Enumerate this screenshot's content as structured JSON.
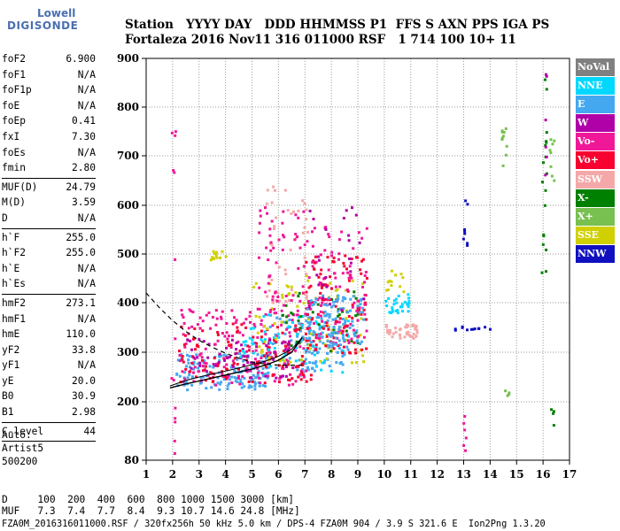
{
  "logo": {
    "line1": "Lowell",
    "line2": "DIGISONDE"
  },
  "header": {
    "line1": "Station   YYYY DAY   DDD HHMMSS P1  FFS S AXN PPS IGA PS",
    "line2": "Fortaleza 2016 Nov11 316 011000 RSF   1 714 100 10+ 11"
  },
  "params": {
    "group1": [
      {
        "name": "foF2",
        "value": "6.900"
      },
      {
        "name": "foF1",
        "value": "N/A"
      },
      {
        "name": "foF1p",
        "value": "N/A"
      },
      {
        "name": "foE",
        "value": "N/A"
      },
      {
        "name": "foEp",
        "value": "0.41"
      },
      {
        "name": "fxI",
        "value": "7.30"
      },
      {
        "name": "foEs",
        "value": "N/A"
      },
      {
        "name": "fmin",
        "value": "2.80"
      }
    ],
    "group2": [
      {
        "name": "MUF(D)",
        "value": "24.79"
      },
      {
        "name": "M(D)",
        "value": "3.59"
      },
      {
        "name": "D",
        "value": "N/A"
      }
    ],
    "group3": [
      {
        "name": "h`F",
        "value": "255.0"
      },
      {
        "name": "h`F2",
        "value": "255.0"
      },
      {
        "name": "h`E",
        "value": "N/A"
      },
      {
        "name": "h`Es",
        "value": "N/A"
      }
    ],
    "group4": [
      {
        "name": "hmF2",
        "value": "273.1"
      },
      {
        "name": "hmF1",
        "value": "N/A"
      },
      {
        "name": "hmE",
        "value": "110.0"
      },
      {
        "name": "yF2",
        "value": "33.8"
      },
      {
        "name": "yF1",
        "value": "N/A"
      },
      {
        "name": "yE",
        "value": "20.0"
      },
      {
        "name": "B0",
        "value": "30.9"
      },
      {
        "name": "B1",
        "value": "2.98"
      }
    ],
    "group5": [
      {
        "name": "C-level",
        "value": "44"
      }
    ]
  },
  "auto": {
    "line1": "Auto:",
    "line2": "Artist5",
    "line3": "500200"
  },
  "legend": [
    {
      "label": "NoVal",
      "color": "#808080"
    },
    {
      "label": "NNE",
      "color": "#00d8ff"
    },
    {
      "label": "E",
      "color": "#44a8f0"
    },
    {
      "label": "W",
      "color": "#b000a8"
    },
    {
      "label": "Vo-",
      "color": "#f01898"
    },
    {
      "label": "Vo+",
      "color": "#f80030"
    },
    {
      "label": "SSW",
      "color": "#f4a8a8"
    },
    {
      "label": "X-",
      "color": "#008000"
    },
    {
      "label": "X+",
      "color": "#78c050"
    },
    {
      "label": "SSE",
      "color": "#d0d000"
    },
    {
      "label": "NNW",
      "color": "#1010c0"
    }
  ],
  "bottom": {
    "line1": "D     100  200  400  600  800 1000 1500 3000 [km]",
    "line2": "MUF   7.3  7.4  7.7  8.4  9.3 10.7 14.6 24.8 [MHz]",
    "line3": "FZA0M_2016316011000.RSF / 320fx256h 50 kHz 5.0 km / DPS-4 FZA0M 904 / 3.9 S 321.6 E  Ion2Png 1.3.20"
  },
  "chart_data": {
    "type": "scatter",
    "title": "",
    "xlabel": "",
    "ylabel": "",
    "xlim": [
      1,
      17
    ],
    "ylim": [
      80,
      900
    ],
    "x_ticks": [
      1,
      2,
      3,
      4,
      5,
      6,
      7,
      8,
      9,
      10,
      11,
      12,
      13,
      14,
      15,
      16,
      17
    ],
    "y_ticks": [
      80,
      200,
      300,
      400,
      500,
      600,
      700,
      800,
      900
    ],
    "grid": true,
    "trace_f2": {
      "x": [
        1.9,
        2.5,
        3.0,
        3.5,
        4.0,
        4.5,
        5.0,
        5.5,
        6.0,
        6.5,
        6.9
      ],
      "y": [
        228,
        236,
        242,
        248,
        254,
        260,
        266,
        274,
        284,
        300,
        330
      ]
    },
    "trace_upper": {
      "x": [
        1.9,
        2.5,
        3.0,
        3.5,
        4.0,
        4.5,
        5.0,
        5.5,
        6.0,
        6.5,
        6.9
      ],
      "y": [
        232,
        243,
        250,
        256,
        262,
        268,
        275,
        282,
        292,
        306,
        330
      ]
    },
    "profile_dashed": {
      "x": [
        1.0,
        1.5,
        2.0,
        2.5,
        3.0,
        3.5,
        4.0,
        4.5,
        5.0,
        5.5,
        6.0,
        6.5,
        6.9
      ],
      "y": [
        420,
        390,
        364,
        342,
        324,
        310,
        298,
        288,
        280,
        276,
        274,
        274,
        274
      ]
    },
    "clusters": [
      {
        "color": "#44a8f0",
        "x": [
          2.0,
          5.6
        ],
        "y": [
          225,
          300
        ],
        "n": 140
      },
      {
        "color": "#44a8f0",
        "x": [
          5.5,
          8.6
        ],
        "y": [
          255,
          380
        ],
        "n": 120
      },
      {
        "color": "#f01898",
        "x": [
          2.2,
          7.0
        ],
        "y": [
          235,
          390
        ],
        "n": 170
      },
      {
        "color": "#f80030",
        "x": [
          2.2,
          7.2
        ],
        "y": [
          240,
          360
        ],
        "n": 130
      },
      {
        "color": "#b000a8",
        "x": [
          2.5,
          6.5
        ],
        "y": [
          250,
          330
        ],
        "n": 60
      },
      {
        "color": "#00d8ff",
        "x": [
          4.5,
          8.6
        ],
        "y": [
          260,
          380
        ],
        "n": 60
      },
      {
        "color": "#d0d000",
        "x": [
          5.0,
          9.2
        ],
        "y": [
          280,
          460
        ],
        "n": 80
      },
      {
        "color": "#008000",
        "x": [
          6.0,
          9.2
        ],
        "y": [
          300,
          430
        ],
        "n": 40
      },
      {
        "color": "#f80030",
        "x": [
          7.0,
          9.3
        ],
        "y": [
          300,
          500
        ],
        "n": 110
      },
      {
        "color": "#f01898",
        "x": [
          7.0,
          9.3
        ],
        "y": [
          320,
          560
        ],
        "n": 90
      },
      {
        "color": "#44a8f0",
        "x": [
          7.0,
          9.2
        ],
        "y": [
          300,
          420
        ],
        "n": 90
      },
      {
        "color": "#b000a8",
        "x": [
          7.0,
          9.2
        ],
        "y": [
          380,
          600
        ],
        "n": 25
      },
      {
        "color": "#f4a8a8",
        "x": [
          5.5,
          7.1
        ],
        "y": [
          400,
          650
        ],
        "n": 45
      },
      {
        "color": "#f01898",
        "x": [
          5.2,
          7.0
        ],
        "y": [
          380,
          600
        ],
        "n": 55
      },
      {
        "color": "#f4a8a8",
        "x": [
          10.0,
          11.2
        ],
        "y": [
          330,
          360
        ],
        "n": 45
      },
      {
        "color": "#00d8ff",
        "x": [
          10.0,
          10.9
        ],
        "y": [
          380,
          420
        ],
        "n": 30
      },
      {
        "color": "#d0d000",
        "x": [
          10.0,
          10.7
        ],
        "y": [
          420,
          470
        ],
        "n": 12
      },
      {
        "color": "#d0d000",
        "x": [
          3.4,
          4.0
        ],
        "y": [
          490,
          510
        ],
        "n": 14
      },
      {
        "color": "#1010c0",
        "x": [
          12.5,
          14.1
        ],
        "y": [
          345,
          355
        ],
        "n": 12
      },
      {
        "color": "#1010c0",
        "x": [
          12.9,
          13.1
        ],
        "y": [
          480,
          640
        ],
        "n": 8
      },
      {
        "color": "#78c050",
        "x": [
          14.4,
          14.6
        ],
        "y": [
          680,
          760
        ],
        "n": 10
      },
      {
        "color": "#008000",
        "x": [
          15.9,
          16.1
        ],
        "y": [
          420,
          900
        ],
        "n": 18
      },
      {
        "color": "#b000a8",
        "x": [
          16.0,
          16.1
        ],
        "y": [
          620,
          900
        ],
        "n": 6
      },
      {
        "color": "#78c050",
        "x": [
          16.2,
          16.4
        ],
        "y": [
          640,
          760
        ],
        "n": 8
      },
      {
        "color": "#008000",
        "x": [
          16.2,
          16.4
        ],
        "y": [
          150,
          200
        ],
        "n": 4
      },
      {
        "color": "#f01898",
        "x": [
          1.9,
          2.1
        ],
        "y": [
          80,
          760
        ],
        "n": 14
      },
      {
        "color": "#f01898",
        "x": [
          12.9,
          13.1
        ],
        "y": [
          100,
          180
        ],
        "n": 6
      },
      {
        "color": "#78c050",
        "x": [
          14.5,
          14.7
        ],
        "y": [
          200,
          230
        ],
        "n": 4
      }
    ]
  }
}
